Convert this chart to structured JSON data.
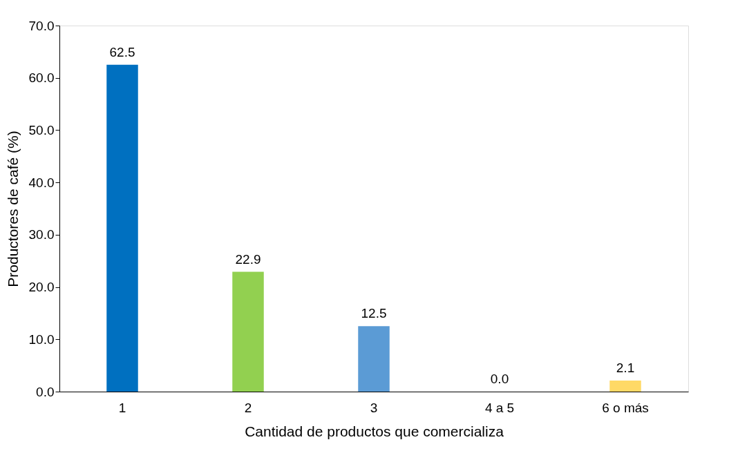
{
  "chart_data": {
    "type": "bar",
    "xlabel": "Cantidad de productos que comercializa",
    "ylabel": "Productores de café (%)",
    "categories": [
      "1",
      "2",
      "3",
      "4 a 5",
      "6 o más"
    ],
    "values": [
      62.5,
      22.9,
      12.5,
      0.0,
      2.1
    ],
    "colors": [
      "#0070c0",
      "#92d050",
      "#5b9bd5",
      "#ed7d31",
      "#ffd966"
    ],
    "value_labels": [
      "62.5",
      "22.9",
      "12.5",
      "0.0",
      "2.1"
    ],
    "ylim": [
      0,
      70
    ],
    "yticks": [
      {
        "value": 0,
        "label": "0.0"
      },
      {
        "value": 10,
        "label": "10.0"
      },
      {
        "value": 20,
        "label": "20.0"
      },
      {
        "value": 30,
        "label": "30.0"
      },
      {
        "value": 40,
        "label": "40.0"
      },
      {
        "value": 50,
        "label": "50.0"
      },
      {
        "value": 60,
        "label": "60.0"
      },
      {
        "value": 70,
        "label": "70.0"
      }
    ],
    "grid": false,
    "legend": false
  }
}
